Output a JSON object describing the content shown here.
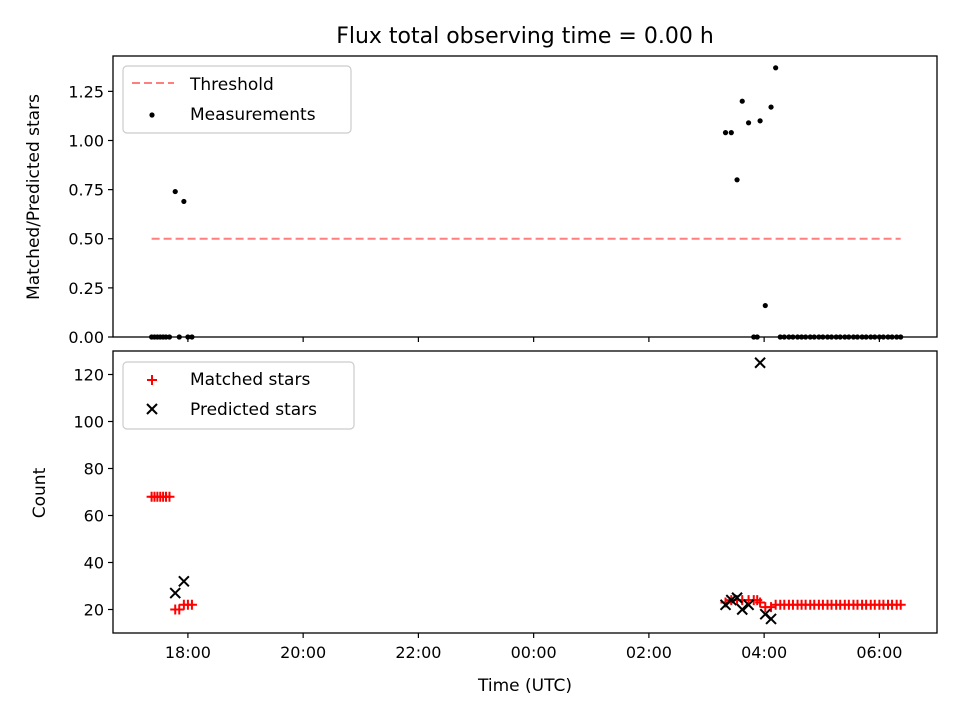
{
  "figure": {
    "title": "Flux total observing time = 0.00 h",
    "xlabel": "Time (UTC)"
  },
  "colors": {
    "threshold": "#ff7f7f",
    "measurement": "#000000",
    "matched": "#ff0000",
    "predicted": "#000000"
  },
  "chart_data": [
    {
      "type": "scatter",
      "panel": "top",
      "title": "Flux total observing time = 0.00 h",
      "xlabel": "",
      "ylabel": "Matched/Predicted stars",
      "xlim_hours": [
        16.7,
        31.0
      ],
      "ylim": [
        0,
        1.43
      ],
      "x_ticks": [
        18,
        20,
        22,
        24,
        26,
        28,
        30
      ],
      "y_ticks": [
        0.0,
        0.25,
        0.5,
        0.75,
        1.0,
        1.25
      ],
      "y_tick_labels": [
        "0.00",
        "0.25",
        "0.50",
        "0.75",
        "1.00",
        "1.25"
      ],
      "legend": [
        "Threshold",
        "Measurements"
      ],
      "legend_position": "upper left",
      "threshold": {
        "name": "Threshold",
        "value": 0.5,
        "x_range_hours": [
          17.37,
          30.37
        ],
        "style": "dashed"
      },
      "series": [
        {
          "name": "Measurements",
          "marker": "dot",
          "x_hours": [
            17.37,
            17.42,
            17.47,
            17.52,
            17.57,
            17.62,
            17.68,
            17.78,
            17.85,
            17.93,
            18.0,
            18.07,
            27.33,
            27.43,
            27.53,
            27.62,
            27.73,
            27.82,
            27.88,
            27.93,
            28.02,
            28.12,
            28.2,
            28.28,
            28.35,
            28.43,
            28.5,
            28.58,
            28.65,
            28.72,
            28.8,
            28.87,
            28.95,
            29.02,
            29.1,
            29.17,
            29.25,
            29.32,
            29.4,
            29.47,
            29.55,
            29.62,
            29.7,
            29.77,
            29.85,
            29.92,
            30.0,
            30.07,
            30.15,
            30.22,
            30.3,
            30.37
          ],
          "y": [
            0.0,
            0.0,
            0.0,
            0.0,
            0.0,
            0.0,
            0.0,
            0.74,
            0.0,
            0.69,
            0.0,
            0.0,
            1.04,
            1.04,
            0.8,
            1.2,
            1.09,
            0.0,
            0.0,
            1.1,
            0.16,
            1.17,
            1.37,
            0.0,
            0.0,
            0.0,
            0.0,
            0.0,
            0.0,
            0.0,
            0.0,
            0.0,
            0.0,
            0.0,
            0.0,
            0.0,
            0.0,
            0.0,
            0.0,
            0.0,
            0.0,
            0.0,
            0.0,
            0.0,
            0.0,
            0.0,
            0.0,
            0.0,
            0.0,
            0.0,
            0.0,
            0.0
          ]
        }
      ]
    },
    {
      "type": "scatter",
      "panel": "bottom",
      "xlabel": "Time (UTC)",
      "ylabel": "Count",
      "xlim_hours": [
        16.7,
        31.0
      ],
      "ylim": [
        10,
        130
      ],
      "x_ticks": [
        18,
        20,
        22,
        24,
        26,
        28,
        30
      ],
      "x_tick_labels": [
        "18:00",
        "20:00",
        "22:00",
        "00:00",
        "02:00",
        "04:00",
        "06:00"
      ],
      "y_ticks": [
        20,
        40,
        60,
        80,
        100,
        120
      ],
      "y_tick_labels": [
        "20",
        "40",
        "60",
        "80",
        "100",
        "120"
      ],
      "legend": [
        "Matched stars",
        "Predicted stars"
      ],
      "legend_position": "upper left",
      "series": [
        {
          "name": "Matched stars",
          "marker": "plus",
          "x_hours": [
            17.37,
            17.42,
            17.47,
            17.52,
            17.57,
            17.62,
            17.68,
            17.78,
            17.85,
            17.93,
            18.0,
            18.07,
            27.33,
            27.43,
            27.53,
            27.62,
            27.73,
            27.82,
            27.88,
            27.93,
            28.02,
            28.12,
            28.2,
            28.28,
            28.35,
            28.43,
            28.5,
            28.58,
            28.65,
            28.72,
            28.8,
            28.87,
            28.95,
            29.02,
            29.1,
            29.17,
            29.25,
            29.32,
            29.4,
            29.47,
            29.55,
            29.62,
            29.7,
            29.77,
            29.85,
            29.92,
            30.0,
            30.07,
            30.15,
            30.22,
            30.3,
            30.37
          ],
          "y": [
            68,
            68,
            68,
            68,
            68,
            68,
            68,
            20,
            20,
            22,
            22,
            22,
            23,
            24,
            24,
            24,
            24,
            24,
            24,
            23,
            21,
            21,
            22,
            22,
            22,
            22,
            22,
            22,
            22,
            22,
            22,
            22,
            22,
            22,
            22,
            22,
            22,
            22,
            22,
            22,
            22,
            22,
            22,
            22,
            22,
            22,
            22,
            22,
            22,
            22,
            22,
            22
          ]
        },
        {
          "name": "Predicted stars",
          "marker": "x",
          "x_hours": [
            17.78,
            17.93,
            27.33,
            27.43,
            27.53,
            27.62,
            27.73,
            27.93,
            28.02,
            28.12
          ],
          "y": [
            27,
            32,
            22,
            24,
            25,
            20,
            22,
            125,
            18,
            16
          ]
        }
      ]
    }
  ]
}
